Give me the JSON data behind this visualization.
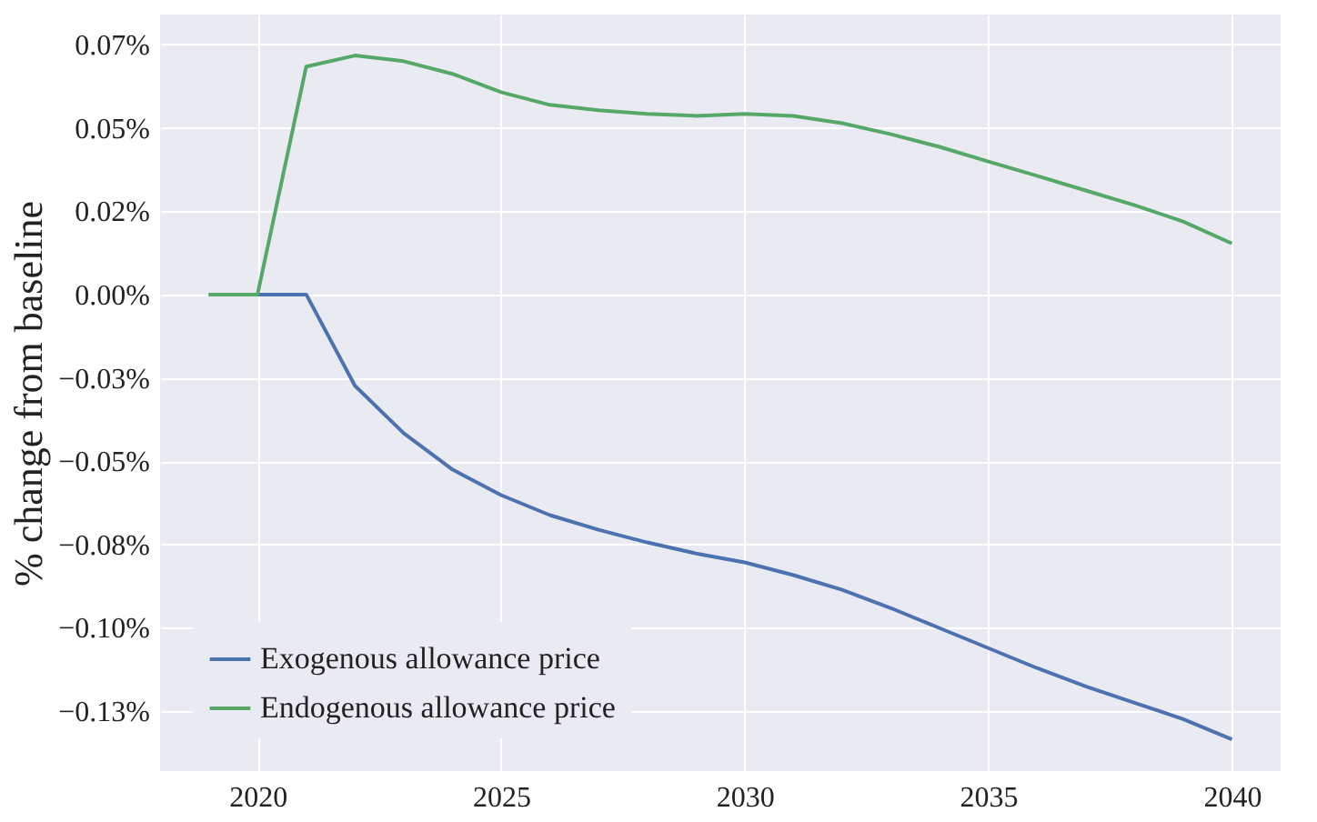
{
  "chart_data": {
    "type": "line",
    "ylabel": "% change from baseline",
    "x": [
      2019,
      2020,
      2021,
      2022,
      2023,
      2024,
      2025,
      2026,
      2027,
      2028,
      2029,
      2030,
      2031,
      2032,
      2033,
      2034,
      2035,
      2036,
      2037,
      2038,
      2039,
      2040
    ],
    "series": [
      {
        "name": "Exogenous allowance price",
        "color": "#4c72b0",
        "values": [
          0,
          0,
          0,
          -0.0274,
          -0.0416,
          -0.0525,
          -0.0602,
          -0.0662,
          -0.0706,
          -0.0744,
          -0.0777,
          -0.0804,
          -0.0842,
          -0.0886,
          -0.0941,
          -0.1001,
          -0.1061,
          -0.1121,
          -0.1176,
          -0.1225,
          -0.1274,
          -0.1335
        ]
      },
      {
        "name": "Endogenous allowance price",
        "color": "#55a868",
        "values": [
          0,
          0,
          0.0684,
          0.0717,
          0.07,
          0.0662,
          0.0607,
          0.0569,
          0.0553,
          0.0542,
          0.0536,
          0.0542,
          0.0536,
          0.0514,
          0.0481,
          0.0443,
          0.0399,
          0.0356,
          0.0312,
          0.0268,
          0.0219,
          0.0153
        ]
      }
    ],
    "xlim": [
      2018,
      2041
    ],
    "xticks": [
      2020,
      2025,
      2030,
      2035,
      2040
    ],
    "ylim": [
      -0.143,
      0.084
    ],
    "yticks": [
      {
        "value": 0.075,
        "label": "0.07%"
      },
      {
        "value": 0.05,
        "label": "0.05%"
      },
      {
        "value": 0.025,
        "label": "0.02%"
      },
      {
        "value": 0,
        "label": "0.00%"
      },
      {
        "value": -0.025,
        "label": "−0.03%"
      },
      {
        "value": -0.05,
        "label": "−0.05%"
      },
      {
        "value": -0.075,
        "label": "−0.08%"
      },
      {
        "value": -0.1,
        "label": "−0.10%"
      },
      {
        "value": -0.125,
        "label": "−0.13%"
      }
    ],
    "grid": true,
    "legend": "bottom left",
    "marker": "none",
    "line_style": "solid"
  }
}
